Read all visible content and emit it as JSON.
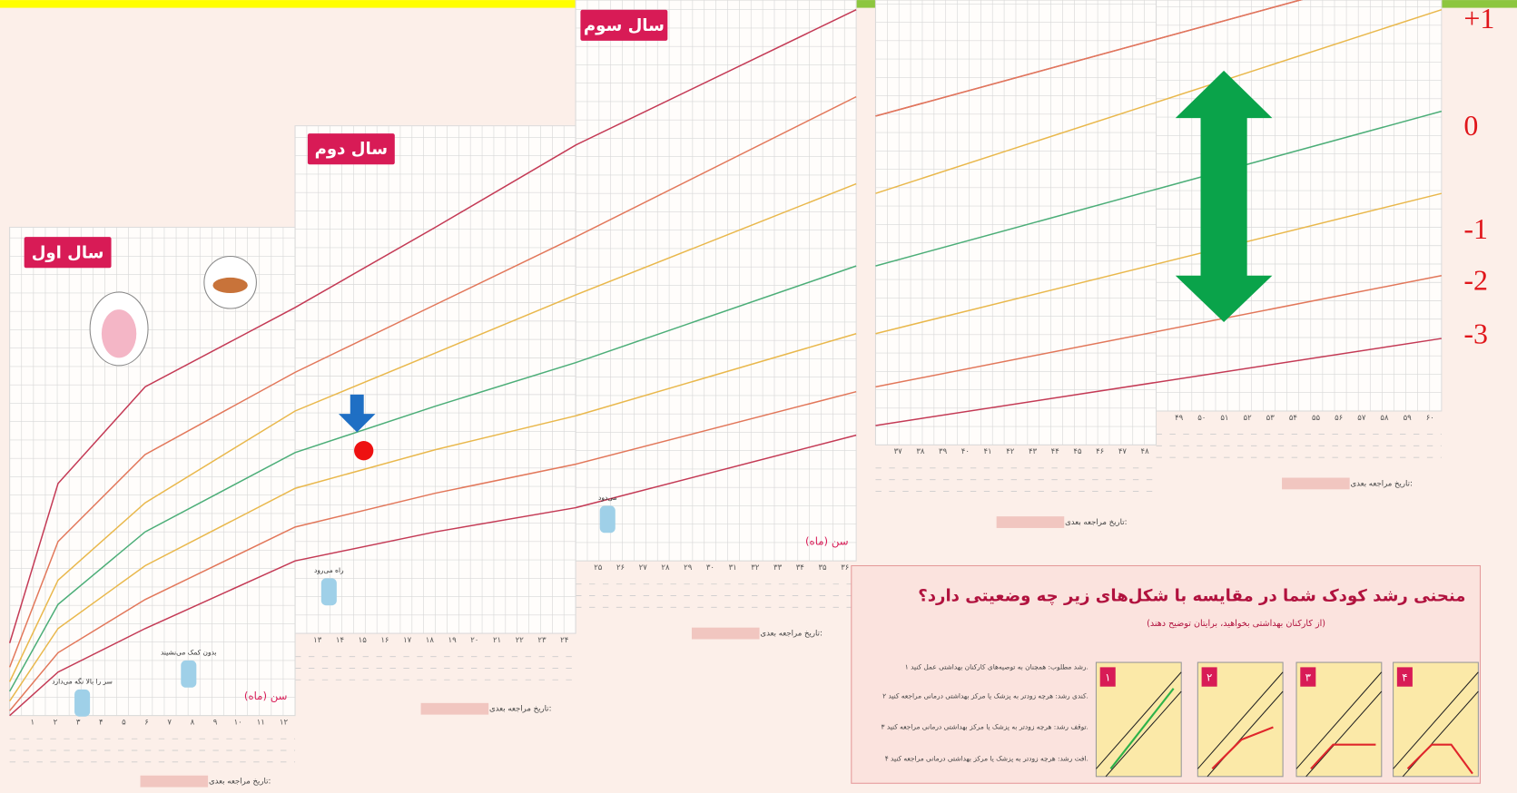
{
  "panels": [
    {
      "title": "سال اول",
      "x_label": "سن (ماه)",
      "x_ticks": [
        "۱",
        "۲",
        "۳",
        "۴",
        "۵",
        "۶",
        "۷",
        "۸",
        "۹",
        "۱۰",
        "۱۱",
        "۱۲"
      ],
      "next_visit": "تاریخ مراجعه بعدی:",
      "captions": [
        "سر را بالا نگه می‌دارد",
        "بدون کمک می‌نشیند"
      ]
    },
    {
      "title": "سال دوم",
      "x_ticks": [
        "۱۳",
        "۱۴",
        "۱۵",
        "۱۶",
        "۱۷",
        "۱۸",
        "۱۹",
        "۲۰",
        "۲۱",
        "۲۲",
        "۲۳",
        "۲۴"
      ],
      "next_visit": "تاریخ مراجعه بعدی:",
      "captions": [
        "راه می‌رود"
      ]
    },
    {
      "title": "سال سوم",
      "x_label": "سن (ماه)",
      "x_ticks": [
        "۲۵",
        "۲۶",
        "۲۷",
        "۲۸",
        "۲۹",
        "۳۰",
        "۳۱",
        "۳۲",
        "۳۳",
        "۳۴",
        "۳۵",
        "۳۶"
      ],
      "next_visit": "تاریخ مراجعه بعدی:",
      "captions": [
        "می‌دود"
      ]
    },
    {
      "x_ticks": [
        "۳۷",
        "۳۸",
        "۳۹",
        "۴۰",
        "۴۱",
        "۴۲",
        "۴۳",
        "۴۴",
        "۴۵",
        "۴۶",
        "۴۷",
        "۴۸"
      ],
      "next_visit": "تاریخ مراجعه بعدی:"
    },
    {
      "x_ticks": [
        "۴۹",
        "۵۰",
        "۵۱",
        "۵۲",
        "۵۳",
        "۵۴",
        "۵۵",
        "۵۶",
        "۵۷",
        "۵۸",
        "۵۹",
        "۶۰"
      ],
      "next_visit": "تاریخ مراجعه بعدی:"
    }
  ],
  "z_labels": [
    "+1",
    "0",
    "-1",
    "-2",
    "-3"
  ],
  "guide": {
    "title": "منحنی رشد کودک شما در مقایسه با شکل‌های زیر چه وضعیتی دارد؟",
    "subtitle": "(از کارکنان بهداشتی بخواهید، برایتان توضیح دهند)",
    "items": [
      "۱ رشد مطلوب: همچنان به توصیه‌های کارکنان بهداشتی عمل کنید.",
      "۲ کندی رشد: هرچه زودتر به پزشک یا مرکز بهداشتی درمانی مراجعه کنید.",
      "۳ توقف رشد: هرچه زودتر به پزشک یا مرکز بهداشتی درمانی مراجعه کنید.",
      "۴ افت رشد: هرچه زودتر به پزشک یا مرکز بهداشتی درمانی مراجعه کنید."
    ],
    "panel_numbers": [
      "۱",
      "۲",
      "۳",
      "۴"
    ]
  }
}
